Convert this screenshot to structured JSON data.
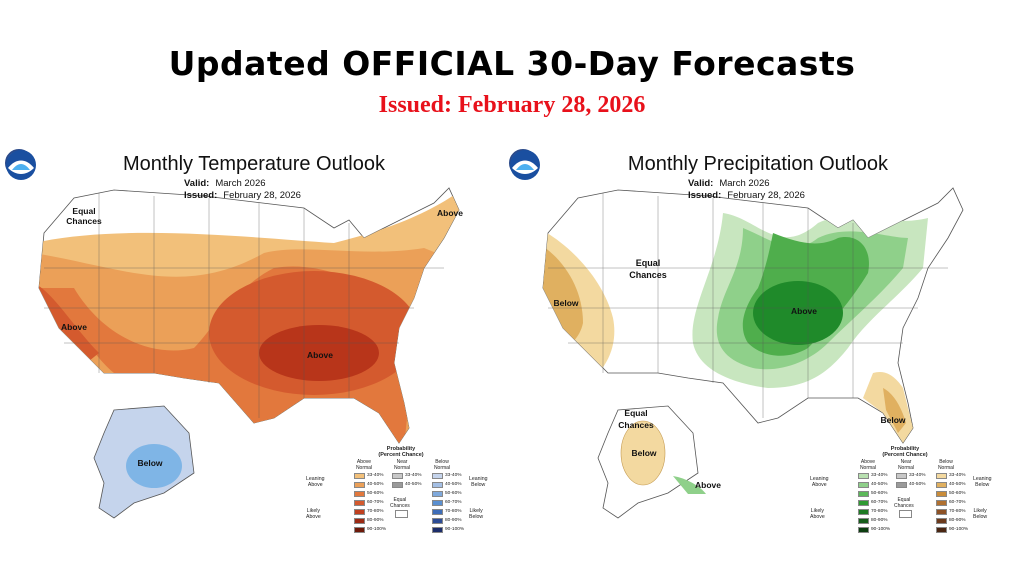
{
  "header": {
    "title": "Updated OFFICIAL 30-Day Forecasts",
    "issued": "Issued: February 28, 2026"
  },
  "panels": {
    "temperature": {
      "title": "Monthly Temperature Outlook",
      "valid_label": "Valid:",
      "valid_value": "March 2026",
      "issued_label": "Issued:",
      "issued_value": "February 28, 2026",
      "map_labels": {
        "equal_chances": [
          "Equal",
          "Chances"
        ],
        "above_ne": "Above",
        "above_west": "Above",
        "above_center": "Above",
        "below_alaska": "Below"
      },
      "legend": {
        "heading": [
          "Probability",
          "(Percent Chance)"
        ],
        "col_left": [
          "Above",
          "Normal"
        ],
        "col_mid": [
          "Near",
          "Normal"
        ],
        "col_right": [
          "Below",
          "Normal"
        ],
        "ranges": [
          "33-40%",
          "40-50%",
          "50-60%",
          "60-70%",
          "70-80%",
          "80-90%",
          "90-100%"
        ],
        "mid_ranges": [
          "33-40%",
          "40-50%"
        ],
        "equal_chances": [
          "Equal",
          "Chances"
        ],
        "left_side_top": [
          "Leaning",
          "Above"
        ],
        "left_side_bottom": [
          "Likely",
          "Above"
        ],
        "right_side_top": [
          "Leaning",
          "Below"
        ],
        "right_side_bottom": [
          "Likely",
          "Below"
        ],
        "colors_left": [
          "#f2c07a",
          "#eba058",
          "#e2783d",
          "#d45a2e",
          "#c0401f",
          "#9c2a14",
          "#6e1a0a"
        ],
        "colors_mid": [
          "#c8c8c8",
          "#9a9a9a"
        ],
        "colors_right": [
          "#c5d4ec",
          "#a4bfe4",
          "#7fa9dc",
          "#5a8fd0",
          "#3e6db8",
          "#2c4c95",
          "#1c2d6a"
        ]
      }
    },
    "precipitation": {
      "title": "Monthly Precipitation Outlook",
      "valid_label": "Valid:",
      "valid_value": "March 2026",
      "issued_label": "Issued:",
      "issued_value": "February 28, 2026",
      "map_labels": {
        "equal_chances": [
          "Equal",
          "Chances"
        ],
        "below_west": "Below",
        "above_center": "Above",
        "below_florida": "Below",
        "equal_chances_ak": [
          "Equal",
          "Chances"
        ],
        "below_alaska": "Below",
        "above_alaska": "Above"
      },
      "legend": {
        "heading": [
          "Probability",
          "(Percent Chance)"
        ],
        "col_left": [
          "Above",
          "Normal"
        ],
        "col_mid": [
          "Near",
          "Normal"
        ],
        "col_right": [
          "Below",
          "Normal"
        ],
        "ranges": [
          "33-40%",
          "40-50%",
          "50-60%",
          "60-70%",
          "70-80%",
          "80-90%",
          "90-100%"
        ],
        "mid_ranges": [
          "33-40%",
          "40-50%"
        ],
        "equal_chances": [
          "Equal",
          "Chances"
        ],
        "left_side_top": [
          "Leaning",
          "Above"
        ],
        "left_side_bottom": [
          "Likely",
          "Above"
        ],
        "right_side_top": [
          "Leaning",
          "Below"
        ],
        "right_side_bottom": [
          "Likely",
          "Below"
        ],
        "colors_left": [
          "#b8e0b0",
          "#8fd08a",
          "#5cb85a",
          "#2f9a33",
          "#1e7a24",
          "#155c1a",
          "#0c3d10"
        ],
        "colors_mid": [
          "#c8c8c8",
          "#9a9a9a"
        ],
        "colors_right": [
          "#f3d9a0",
          "#e0b060",
          "#c98c3a",
          "#b07030",
          "#8d5226",
          "#6b3a1c",
          "#4a2612"
        ]
      }
    }
  },
  "colors": {
    "title_red": "#e8111b",
    "temp_above_1": "#f2c07a",
    "temp_above_2": "#eba058",
    "temp_above_3": "#e2783d",
    "temp_above_4": "#d45a2e",
    "temp_above_5": "#b8351a",
    "temp_below_1": "#c5d4ec",
    "temp_below_2": "#7fb5e6",
    "precip_above_1": "#c8e6bf",
    "precip_above_2": "#8fd08a",
    "precip_above_3": "#4fae4c",
    "precip_above_4": "#1f8a2a",
    "precip_below_1": "#f3d9a0",
    "precip_below_2": "#e0b060"
  }
}
